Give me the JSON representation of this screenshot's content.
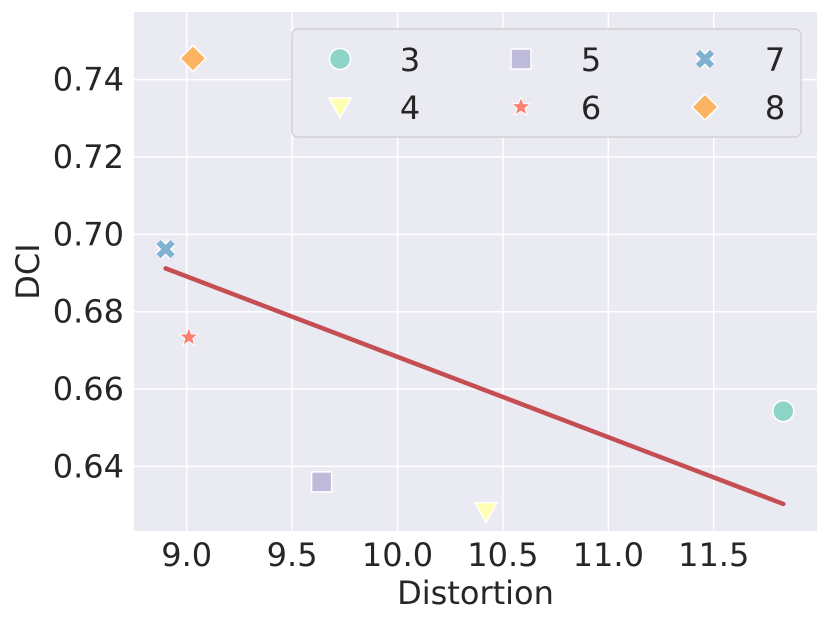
{
  "chart_data": {
    "type": "scatter",
    "xlabel": "Distortion",
    "ylabel": "DCI",
    "xlim": [
      8.75,
      11.99
    ],
    "ylim": [
      0.6233,
      0.7575
    ],
    "x_ticks": [
      9.0,
      9.5,
      10.0,
      10.5,
      11.0,
      11.5
    ],
    "y_ticks": [
      0.64,
      0.66,
      0.68,
      0.7,
      0.72,
      0.74
    ],
    "x_tick_labels": [
      "9.0",
      "9.5",
      "10.0",
      "10.5",
      "11.0",
      "11.5"
    ],
    "y_tick_labels": [
      "0.64",
      "0.66",
      "0.68",
      "0.70",
      "0.72",
      "0.74"
    ],
    "grid": true,
    "legend_position": "top-right",
    "points": [
      {
        "label": "3",
        "x": 11.83,
        "y": 0.6543,
        "marker": "circle",
        "color": "#8dd3c7"
      },
      {
        "label": "4",
        "x": 10.42,
        "y": 0.6283,
        "marker": "triangle-down",
        "color": "#ffffb3"
      },
      {
        "label": "5",
        "x": 9.64,
        "y": 0.636,
        "marker": "square",
        "color": "#bebada"
      },
      {
        "label": "6",
        "x": 9.01,
        "y": 0.6734,
        "marker": "star",
        "color": "#fb8072"
      },
      {
        "label": "7",
        "x": 8.9,
        "y": 0.6962,
        "marker": "x",
        "color": "#80b1d3"
      },
      {
        "label": "8",
        "x": 9.03,
        "y": 0.7455,
        "marker": "diamond",
        "color": "#fdb462"
      }
    ],
    "fit_line": {
      "x": [
        8.9,
        11.83
      ],
      "y": [
        0.6912,
        0.6303
      ],
      "color": "#c44e52"
    }
  },
  "style": {
    "plot_background": "#eaeaf2",
    "grid_color": "#ffffff",
    "text_color": "#262626",
    "legend_background": "#eaeaf2",
    "legend_border": "#cccccc"
  }
}
